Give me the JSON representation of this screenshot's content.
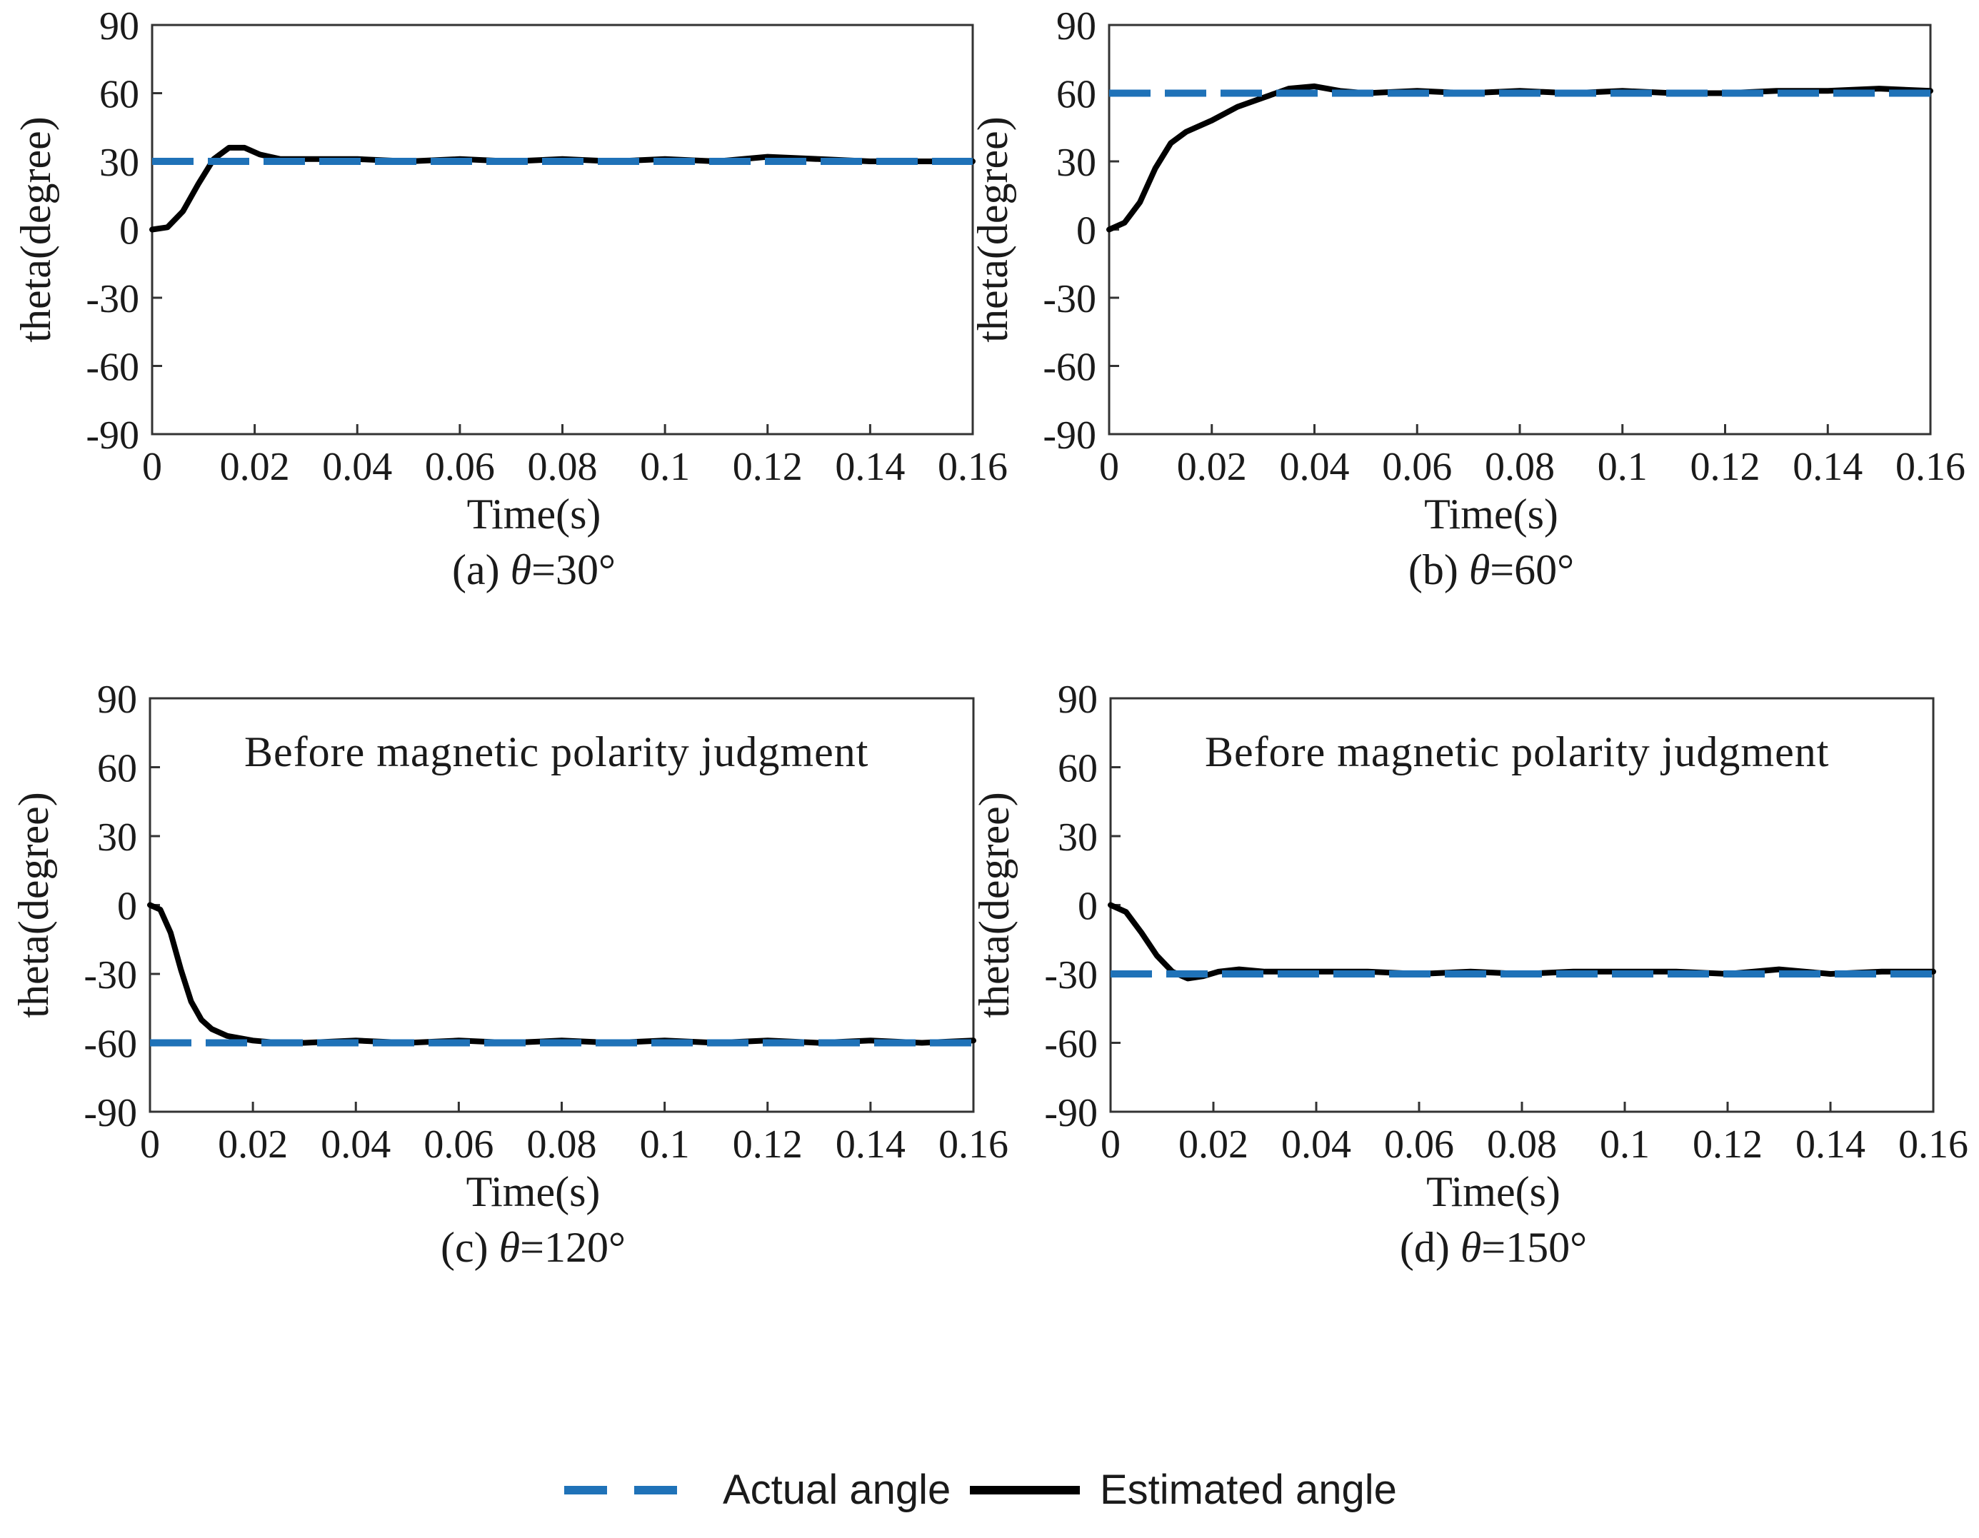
{
  "chart_data": [
    {
      "type": "line",
      "caption": {
        "prefix": "(a)  ",
        "symbol": "θ",
        "suffix": "=30°"
      },
      "annotation": "",
      "xlabel": "Time(s)",
      "ylabel": "theta(degree)",
      "xlim": [
        0,
        0.16
      ],
      "ylim": [
        -90,
        90
      ],
      "xticks": [
        "0",
        "0.02",
        "0.04",
        "0.06",
        "0.08",
        "0.1",
        "0.12",
        "0.14",
        "0.16"
      ],
      "yticks": [
        "90",
        "60",
        "30",
        "0",
        "-30",
        "-60",
        "-90"
      ],
      "grid": false,
      "series": [
        {
          "key": "actual",
          "x": [
            0,
            0.16
          ],
          "y": [
            30,
            30
          ]
        },
        {
          "key": "estimated",
          "x": [
            0,
            0.003,
            0.006,
            0.009,
            0.012,
            0.015,
            0.018,
            0.021,
            0.025,
            0.03,
            0.04,
            0.05,
            0.06,
            0.07,
            0.08,
            0.09,
            0.1,
            0.11,
            0.12,
            0.13,
            0.14,
            0.15,
            0.16
          ],
          "y": [
            0,
            1,
            8,
            20,
            31,
            36,
            36,
            33,
            31,
            31,
            31,
            30,
            31,
            30,
            31,
            30,
            31,
            30,
            32,
            31,
            30,
            30,
            30
          ]
        }
      ]
    },
    {
      "type": "line",
      "caption": {
        "prefix": "(b)  ",
        "symbol": "θ",
        "suffix": "=60°"
      },
      "annotation": "",
      "xlabel": "Time(s)",
      "ylabel": "theta(degree)",
      "xlim": [
        0,
        0.16
      ],
      "ylim": [
        -90,
        90
      ],
      "xticks": [
        "0",
        "0.02",
        "0.04",
        "0.06",
        "0.08",
        "0.1",
        "0.12",
        "0.14",
        "0.16"
      ],
      "yticks": [
        "90",
        "60",
        "30",
        "0",
        "-30",
        "-60",
        "-90"
      ],
      "grid": false,
      "series": [
        {
          "key": "actual",
          "x": [
            0,
            0.16
          ],
          "y": [
            60,
            60
          ]
        },
        {
          "key": "estimated",
          "x": [
            0,
            0.003,
            0.006,
            0.009,
            0.012,
            0.015,
            0.02,
            0.025,
            0.03,
            0.035,
            0.04,
            0.045,
            0.05,
            0.06,
            0.07,
            0.08,
            0.09,
            0.1,
            0.11,
            0.12,
            0.13,
            0.14,
            0.15,
            0.16
          ],
          "y": [
            0,
            3,
            12,
            27,
            38,
            43,
            48,
            54,
            58,
            62,
            63,
            61,
            60,
            61,
            60,
            61,
            60,
            61,
            60,
            60,
            61,
            61,
            62,
            61
          ]
        }
      ]
    },
    {
      "type": "line",
      "caption": {
        "prefix": "(c)  ",
        "symbol": "θ",
        "suffix": "=120°"
      },
      "annotation": "Before magnetic polarity judgment",
      "xlabel": "Time(s)",
      "ylabel": "theta(degree)",
      "xlim": [
        0,
        0.16
      ],
      "ylim": [
        -90,
        90
      ],
      "xticks": [
        "0",
        "0.02",
        "0.04",
        "0.06",
        "0.08",
        "0.1",
        "0.12",
        "0.14",
        "0.16"
      ],
      "yticks": [
        "90",
        "60",
        "30",
        "0",
        "-30",
        "-60",
        "-90"
      ],
      "grid": false,
      "series": [
        {
          "key": "actual",
          "x": [
            0,
            0.16
          ],
          "y": [
            -60,
            -60
          ]
        },
        {
          "key": "estimated",
          "x": [
            0,
            0.002,
            0.004,
            0.006,
            0.008,
            0.01,
            0.012,
            0.015,
            0.02,
            0.025,
            0.03,
            0.04,
            0.05,
            0.06,
            0.07,
            0.08,
            0.09,
            0.1,
            0.11,
            0.12,
            0.13,
            0.14,
            0.15,
            0.16
          ],
          "y": [
            0,
            -2,
            -12,
            -28,
            -42,
            -50,
            -54,
            -57,
            -59,
            -60,
            -60,
            -59,
            -60,
            -59,
            -60,
            -59,
            -60,
            -59,
            -60,
            -59,
            -60,
            -59,
            -60,
            -59
          ]
        }
      ]
    },
    {
      "type": "line",
      "caption": {
        "prefix": "(d) ",
        "symbol": "θ",
        "suffix": "=150°"
      },
      "annotation": "Before magnetic polarity judgment",
      "xlabel": "Time(s)",
      "ylabel": "theta(degree)",
      "xlim": [
        0,
        0.16
      ],
      "ylim": [
        -90,
        90
      ],
      "xticks": [
        "0",
        "0.02",
        "0.04",
        "0.06",
        "0.08",
        "0.1",
        "0.12",
        "0.14",
        "0.16"
      ],
      "yticks": [
        "90",
        "60",
        "30",
        "0",
        "-30",
        "-60",
        "-90"
      ],
      "grid": false,
      "series": [
        {
          "key": "actual",
          "x": [
            0,
            0.16
          ],
          "y": [
            -30,
            -30
          ]
        },
        {
          "key": "estimated",
          "x": [
            0,
            0.003,
            0.006,
            0.009,
            0.012,
            0.015,
            0.018,
            0.021,
            0.025,
            0.03,
            0.04,
            0.05,
            0.06,
            0.07,
            0.08,
            0.09,
            0.1,
            0.11,
            0.12,
            0.13,
            0.14,
            0.15,
            0.16
          ],
          "y": [
            0,
            -3,
            -12,
            -22,
            -29,
            -32,
            -31,
            -29,
            -28,
            -29,
            -29,
            -29,
            -30,
            -29,
            -30,
            -29,
            -29,
            -29,
            -30,
            -28,
            -30,
            -29,
            -29
          ]
        }
      ]
    }
  ],
  "legend": {
    "placement": "bottom",
    "items": [
      {
        "label": "Actual angle",
        "color": "#1f72b8",
        "style": "dashed"
      },
      {
        "label": "Estimated angle",
        "color": "#000000",
        "style": "solid"
      }
    ]
  }
}
